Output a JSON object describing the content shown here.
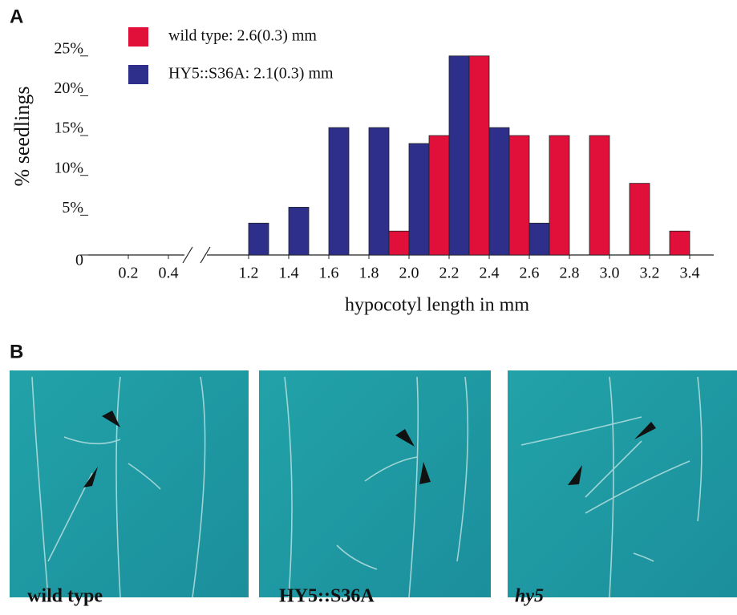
{
  "figure": {
    "panel_a_label": "A",
    "panel_b_label": "B"
  },
  "chart_data": {
    "type": "histogram",
    "ylabel": "% seedlings",
    "xlabel": "hypocotyl length in mm",
    "bins": [
      1.2,
      1.4,
      1.6,
      1.8,
      2.0,
      2.2,
      2.4,
      2.6,
      2.8,
      3.0,
      3.2,
      3.4
    ],
    "series": [
      {
        "name": "wild type: 2.6(0.3) mm",
        "color": "#e0103a",
        "values": [
          0,
          0,
          0,
          3,
          15,
          25,
          15,
          15,
          15,
          9,
          3
        ]
      },
      {
        "name": "HY5::S36A: 2.1(0.3) mm",
        "color": "#2e2f8a",
        "values": [
          4,
          6,
          16,
          16,
          14,
          25,
          16,
          4,
          0,
          0,
          0
        ]
      }
    ],
    "xlim": [
      0,
      3.5
    ],
    "axis_break": [
      0.5,
      1.0
    ],
    "xticks": [
      0.2,
      0.4,
      1.2,
      1.4,
      1.6,
      1.8,
      {
        "value": 2.0,
        "label": "2.0"
      },
      2.2,
      2.4,
      2.6,
      2.8,
      {
        "value": 3.0,
        "label": "3.0"
      },
      3.2,
      3.4
    ],
    "ylim": [
      0,
      28
    ],
    "yticks": [
      0,
      {
        "value": 5,
        "label": "5%"
      },
      {
        "value": 10,
        "label": "10%"
      },
      {
        "value": 15,
        "label": "15%"
      },
      {
        "value": 20,
        "label": "20%"
      },
      {
        "value": 25,
        "label": "25%"
      }
    ],
    "legend": "top-left"
  },
  "photos": [
    {
      "label": "wild type"
    },
    {
      "label": "HY5::S36A"
    },
    {
      "label": "hy5"
    }
  ]
}
